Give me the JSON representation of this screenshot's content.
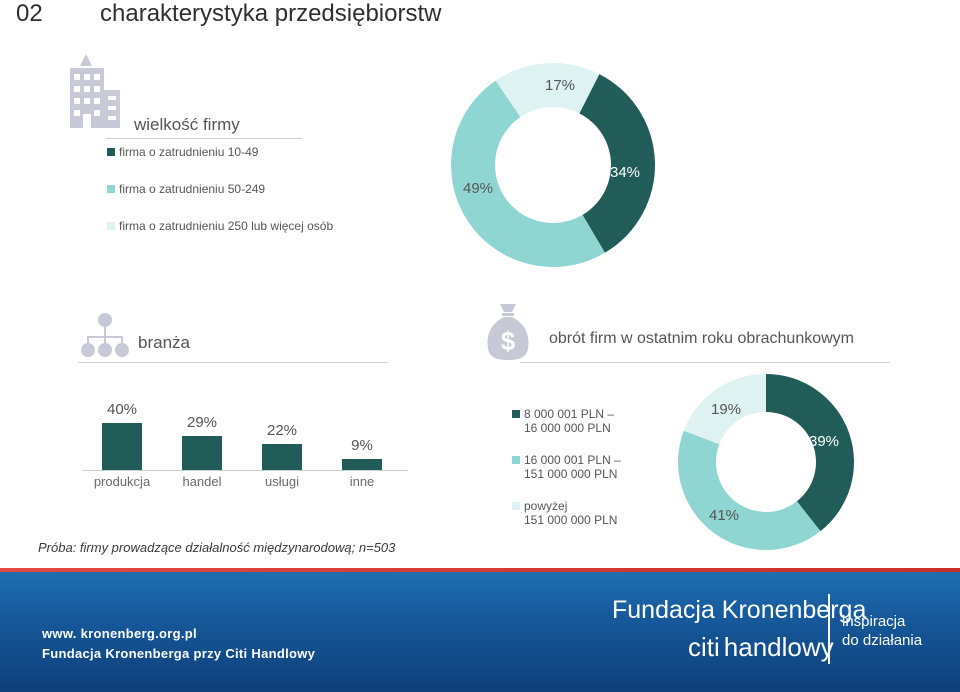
{
  "header": {
    "number": "02",
    "title": "charakterystyka przedsiębiorstw"
  },
  "size": {
    "title": "wielkość firmy",
    "legend": [
      {
        "label": "firma o zatrudnieniu 10-49",
        "color": "#215c59"
      },
      {
        "label": "firma o zatrudnieniu 50-249",
        "color": "#8fd6d2"
      },
      {
        "label": "firma o zatrudnieniu 250 lub więcej osób",
        "color": "#ddf2f1"
      }
    ]
  },
  "industry": {
    "title": "branża"
  },
  "turnover": {
    "title": "obrót firm w ostatnim roku obrachunkowym",
    "legend": [
      {
        "line1": "8 000 001 PLN –",
        "line2": "16 000 000 PLN",
        "color": "#215c59"
      },
      {
        "line1": "16 000 001 PLN –",
        "line2": "151 000 000 PLN",
        "color": "#8fd6d2"
      },
      {
        "line1": "powyżej",
        "line2": "151 000 000 PLN",
        "color": "#ddf2f1"
      }
    ]
  },
  "chart_data": [
    {
      "type": "pie",
      "title": "wielkość firmy",
      "categories": [
        "firma o zatrudnieniu 10-49",
        "firma o zatrudnieniu 50-249",
        "firma o zatrudnieniu 250 lub więcej osób"
      ],
      "values": [
        34,
        49,
        17
      ],
      "labels": [
        "34%",
        "49%",
        "17%"
      ],
      "colors": [
        "#215c59",
        "#8fd6d2",
        "#ddf2f1"
      ]
    },
    {
      "type": "bar",
      "title": "branża",
      "categories": [
        "produkcja",
        "handel",
        "usługi",
        "inne"
      ],
      "values": [
        40,
        29,
        22,
        9
      ],
      "labels": [
        "40%",
        "29%",
        "22%",
        "9%"
      ],
      "ylim": [
        0,
        40
      ],
      "color": "#215c59"
    },
    {
      "type": "pie",
      "title": "obrót firm w ostatnim roku obrachunkowym",
      "categories": [
        "8 000 001 PLN – 16 000 000 PLN",
        "16 000 001 PLN – 151 000 000 PLN",
        "powyżej 151 000 000 PLN"
      ],
      "values": [
        39,
        41,
        19
      ],
      "labels": [
        "39%",
        "41%",
        "19%"
      ],
      "colors": [
        "#215c59",
        "#8fd6d2",
        "#ddf2f1"
      ]
    }
  ],
  "sample": "Próba: firmy prowadzące działalność międzynarodową; n=503",
  "footer": {
    "url": "www. kronenberg.org.pl",
    "org": "Fundacja Kronenberga przy Citi Handlowy",
    "fund_name": "Fundacja Kronenberga",
    "citi_brand": "citi",
    "citi_name": "handlowy",
    "slogan1": "inspiracja",
    "slogan2": "do działania"
  },
  "icons": [
    "building-icon",
    "hierarchy-icon",
    "money-bag-icon"
  ]
}
